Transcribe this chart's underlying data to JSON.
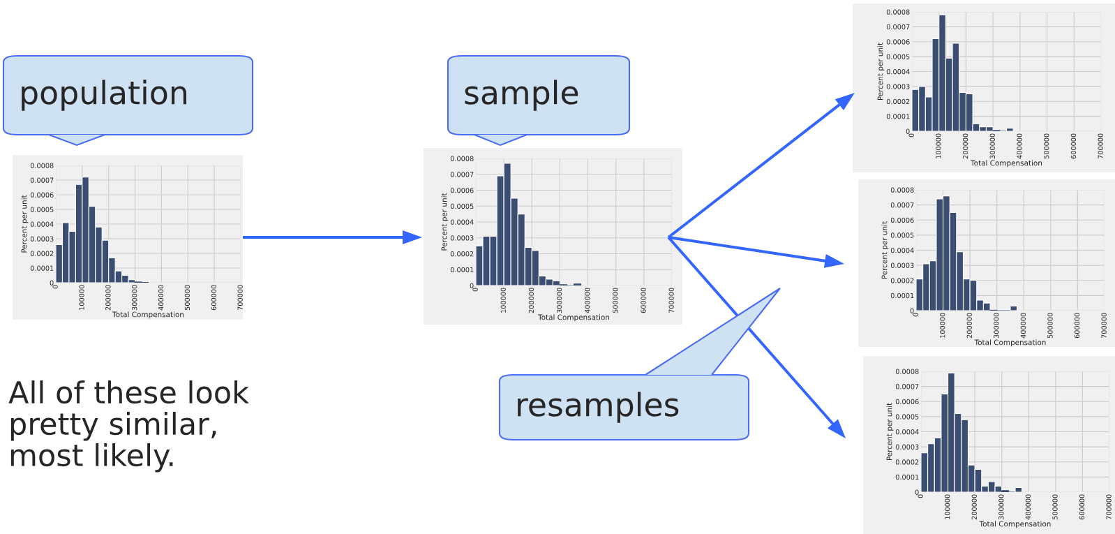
{
  "chart_data": [
    {
      "type": "histogram",
      "xlabel": "Total Compensation",
      "ylabel": "Percent per unit",
      "color": "#3b4d71",
      "grid": true,
      "bins": [
        0,
        25000,
        50000,
        75000,
        100000,
        125000,
        150000,
        175000,
        200000,
        225000,
        250000,
        275000,
        300000,
        325000,
        350000
      ],
      "values": [
        0.00026,
        0.00041,
        0.00035,
        0.00067,
        0.00072,
        0.00052,
        0.00038,
        0.00029,
        0.00017,
        8e-05,
        5e-05,
        2e-05,
        5e-06,
        2e-06
      ],
      "xlim": [
        0,
        700000
      ],
      "ylim": [
        0,
        0.0008
      ],
      "xticks": [
        0,
        100000,
        200000,
        300000,
        400000,
        500000,
        600000,
        700000
      ],
      "yticks": [
        0,
        0.0001,
        0.0002,
        0.0003,
        0.0004,
        0.0005,
        0.0006,
        0.0007,
        0.0008
      ],
      "annotations": [
        "population",
        "All of these look\npretty similar,\nmost likely."
      ]
    },
    {
      "type": "histogram",
      "xlabel": "Total Compensation",
      "ylabel": "Percent per unit",
      "color": "#3b4d71",
      "grid": true,
      "bins": [
        0,
        25000,
        50000,
        75000,
        100000,
        125000,
        150000,
        175000,
        200000,
        225000,
        250000,
        275000,
        300000,
        325000,
        350000,
        375000
      ],
      "values": [
        0.00025,
        0.00031,
        0.00031,
        0.00069,
        0.00077,
        0.00055,
        0.00045,
        0.00024,
        0.00022,
        6e-05,
        4e-05,
        3e-05,
        5e-06,
        0,
        1e-05
      ],
      "xlim": [
        0,
        700000
      ],
      "ylim": [
        0,
        0.0008
      ],
      "xticks": [
        0,
        100000,
        200000,
        300000,
        400000,
        500000,
        600000,
        700000
      ],
      "yticks": [
        0,
        0.0001,
        0.0002,
        0.0003,
        0.0004,
        0.0005,
        0.0006,
        0.0007,
        0.0008
      ],
      "annotations": [
        "sample"
      ]
    },
    {
      "type": "histogram",
      "xlabel": "Total Compensation",
      "ylabel": "Percent per unit",
      "color": "#3b4d71",
      "grid": true,
      "bins": [
        0,
        25000,
        50000,
        75000,
        100000,
        125000,
        150000,
        175000,
        200000,
        225000,
        250000,
        275000,
        300000,
        325000,
        350000,
        375000
      ],
      "values": [
        0.00028,
        0.0003,
        0.00023,
        0.00062,
        0.00078,
        0.00049,
        0.00059,
        0.00026,
        0.00025,
        5e-05,
        3e-05,
        3e-05,
        5e-06,
        0,
        2e-05
      ],
      "xlim": [
        0,
        700000
      ],
      "ylim": [
        0,
        0.0008
      ],
      "xticks": [
        0,
        100000,
        200000,
        300000,
        400000,
        500000,
        600000,
        700000
      ],
      "yticks": [
        0,
        0.0001,
        0.0002,
        0.0003,
        0.0004,
        0.0005,
        0.0006,
        0.0007,
        0.0008
      ]
    },
    {
      "type": "histogram",
      "xlabel": "Total Compensation",
      "ylabel": "Percent per unit",
      "color": "#3b4d71",
      "grid": true,
      "bins": [
        0,
        25000,
        50000,
        75000,
        100000,
        125000,
        150000,
        175000,
        200000,
        225000,
        250000,
        275000,
        300000,
        325000,
        350000,
        375000
      ],
      "values": [
        0.00021,
        0.00031,
        0.00033,
        0.00074,
        0.00076,
        0.00065,
        0.00039,
        0.00021,
        0.0002,
        7e-05,
        5e-05,
        3e-06,
        0,
        0,
        3e-05
      ],
      "xlim": [
        0,
        700000
      ],
      "ylim": [
        0,
        0.0008
      ],
      "xticks": [
        0,
        100000,
        200000,
        300000,
        400000,
        500000,
        600000,
        700000
      ],
      "yticks": [
        0,
        0.0001,
        0.0002,
        0.0003,
        0.0004,
        0.0005,
        0.0006,
        0.0007,
        0.0008
      ],
      "annotations": [
        "resamples"
      ]
    },
    {
      "type": "histogram",
      "xlabel": "Total Compensation",
      "ylabel": "Percent per unit",
      "color": "#3b4d71",
      "grid": true,
      "bins": [
        0,
        25000,
        50000,
        75000,
        100000,
        125000,
        150000,
        175000,
        200000,
        225000,
        250000,
        275000,
        300000,
        325000,
        350000,
        375000
      ],
      "values": [
        0.00026,
        0.00032,
        0.00036,
        0.00065,
        0.00079,
        0.00052,
        0.00048,
        0.00018,
        0.00015,
        4e-05,
        7e-05,
        4e-05,
        1e-05,
        0,
        3e-05
      ],
      "xlim": [
        0,
        700000
      ],
      "ylim": [
        0,
        0.0008
      ],
      "xticks": [
        0,
        100000,
        200000,
        300000,
        400000,
        500000,
        600000,
        700000
      ],
      "yticks": [
        0,
        0.0001,
        0.0002,
        0.0003,
        0.0004,
        0.0005,
        0.0006,
        0.0007,
        0.0008
      ]
    }
  ]
}
